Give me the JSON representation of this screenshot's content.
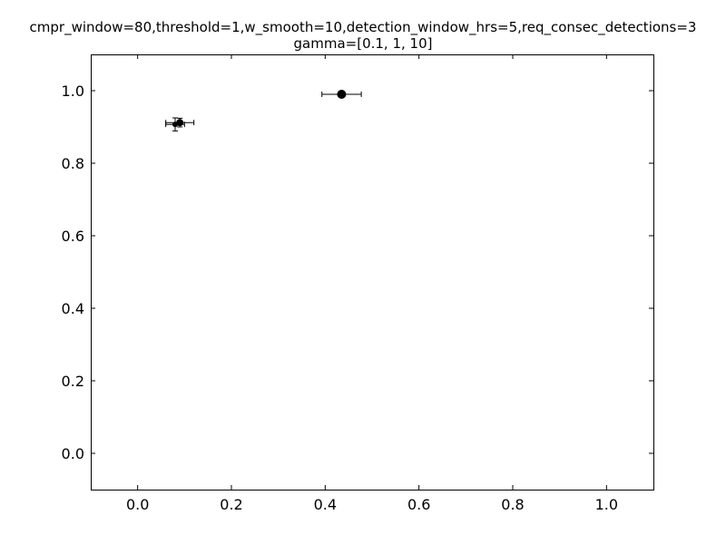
{
  "chart_data": {
    "type": "scatter",
    "title": "cmpr_window=80,threshold=1,w_smooth=10,detection_window_hrs=5,req_consec_detections=3",
    "subtitle": "gamma=[0.1, 1, 10]",
    "xlabel": "",
    "ylabel": "",
    "xlim": [
      -0.1,
      1.1
    ],
    "ylim": [
      -0.1,
      1.1
    ],
    "xticks": [
      "0.0",
      "0.2",
      "0.4",
      "0.6",
      "0.8",
      "1.0"
    ],
    "yticks": [
      "0.0",
      "0.2",
      "0.4",
      "0.6",
      "0.8",
      "1.0"
    ],
    "grid": false,
    "points": [
      {
        "x": 0.08,
        "y": 0.907,
        "xerr": 0.02,
        "yerr": 0.018,
        "size": "small"
      },
      {
        "x": 0.09,
        "y": 0.912,
        "xerr": 0.03,
        "yerr": 0.012,
        "size": "medium"
      },
      {
        "x": 0.435,
        "y": 0.99,
        "xerr": 0.042,
        "yerr": 0.0,
        "size": "large"
      }
    ],
    "marker_color": "#000000"
  }
}
